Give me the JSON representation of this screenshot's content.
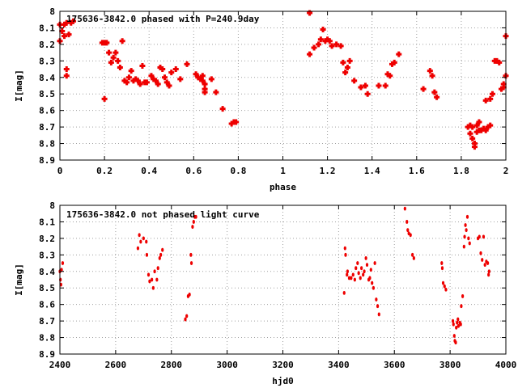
{
  "chart_data": [
    {
      "type": "scatter",
      "title": "175636-3842.0 phased with P=240.9day",
      "xlabel": "phase",
      "ylabel": "I[mag]",
      "xlim": [
        0,
        2
      ],
      "ylim": [
        8.9,
        8
      ],
      "y_inverted": true,
      "grid": true,
      "marker": "cross",
      "color": "#ee0000",
      "xticks": [
        "0",
        "0.2",
        "0.4",
        "0.6",
        "0.8",
        "1",
        "1.2",
        "1.4",
        "1.6",
        "1.8",
        "2"
      ],
      "yticks": [
        "8",
        "8.1",
        "8.2",
        "8.3",
        "8.4",
        "8.5",
        "8.6",
        "8.7",
        "8.8",
        "8.9"
      ],
      "series": [
        {
          "points": [
            [
              0.0,
              8.18
            ],
            [
              0.0,
              8.08
            ],
            [
              0.01,
              8.12
            ],
            [
              0.02,
              8.08
            ],
            [
              0.02,
              8.15
            ],
            [
              0.03,
              8.07
            ],
            [
              0.03,
              8.35
            ],
            [
              0.03,
              8.39
            ],
            [
              0.04,
              8.14
            ],
            [
              0.05,
              8.07
            ],
            [
              0.06,
              8.06
            ],
            [
              0.19,
              8.19
            ],
            [
              0.2,
              8.19
            ],
            [
              0.2,
              8.53
            ],
            [
              0.21,
              8.19
            ],
            [
              0.22,
              8.25
            ],
            [
              0.23,
              8.31
            ],
            [
              0.24,
              8.28
            ],
            [
              0.25,
              8.25
            ],
            [
              0.26,
              8.3
            ],
            [
              0.27,
              8.34
            ],
            [
              0.28,
              8.18
            ],
            [
              0.29,
              8.42
            ],
            [
              0.3,
              8.43
            ],
            [
              0.31,
              8.4
            ],
            [
              0.32,
              8.36
            ],
            [
              0.33,
              8.42
            ],
            [
              0.34,
              8.41
            ],
            [
              0.35,
              8.42
            ],
            [
              0.36,
              8.44
            ],
            [
              0.37,
              8.33
            ],
            [
              0.38,
              8.43
            ],
            [
              0.39,
              8.43
            ],
            [
              0.41,
              8.39
            ],
            [
              0.42,
              8.41
            ],
            [
              0.43,
              8.42
            ],
            [
              0.44,
              8.44
            ],
            [
              0.45,
              8.34
            ],
            [
              0.46,
              8.35
            ],
            [
              0.47,
              8.4
            ],
            [
              0.48,
              8.43
            ],
            [
              0.49,
              8.45
            ],
            [
              0.5,
              8.37
            ],
            [
              0.52,
              8.35
            ],
            [
              0.54,
              8.41
            ],
            [
              0.57,
              8.32
            ],
            [
              0.61,
              8.38
            ],
            [
              0.62,
              8.4
            ],
            [
              0.63,
              8.41
            ],
            [
              0.64,
              8.42
            ],
            [
              0.64,
              8.39
            ],
            [
              0.65,
              8.44
            ],
            [
              0.65,
              8.47
            ],
            [
              0.65,
              8.49
            ],
            [
              0.68,
              8.41
            ],
            [
              0.7,
              8.49
            ],
            [
              0.73,
              8.59
            ],
            [
              0.77,
              8.68
            ],
            [
              0.78,
              8.67
            ],
            [
              0.79,
              8.67
            ],
            [
              1.12,
              8.01
            ],
            [
              1.12,
              8.26
            ],
            [
              1.14,
              8.22
            ],
            [
              1.16,
              8.2
            ],
            [
              1.17,
              8.17
            ],
            [
              1.18,
              8.11
            ],
            [
              1.19,
              8.18
            ],
            [
              1.2,
              8.17
            ],
            [
              1.21,
              8.18
            ],
            [
              1.22,
              8.21
            ],
            [
              1.24,
              8.2
            ],
            [
              1.26,
              8.21
            ],
            [
              1.27,
              8.31
            ],
            [
              1.28,
              8.37
            ],
            [
              1.29,
              8.34
            ],
            [
              1.3,
              8.3
            ],
            [
              1.32,
              8.42
            ],
            [
              1.35,
              8.46
            ],
            [
              1.37,
              8.45
            ],
            [
              1.38,
              8.5
            ],
            [
              1.43,
              8.45
            ],
            [
              1.46,
              8.45
            ],
            [
              1.47,
              8.38
            ],
            [
              1.48,
              8.39
            ],
            [
              1.49,
              8.32
            ],
            [
              1.5,
              8.31
            ],
            [
              1.52,
              8.26
            ],
            [
              1.63,
              8.47
            ],
            [
              1.66,
              8.36
            ],
            [
              1.67,
              8.39
            ],
            [
              1.68,
              8.49
            ],
            [
              1.69,
              8.52
            ],
            [
              1.83,
              8.7
            ],
            [
              1.84,
              8.74
            ],
            [
              1.84,
              8.69
            ],
            [
              1.85,
              8.7
            ],
            [
              1.85,
              8.77
            ],
            [
              1.86,
              8.8
            ],
            [
              1.86,
              8.82
            ],
            [
              1.87,
              8.69
            ],
            [
              1.87,
              8.73
            ],
            [
              1.88,
              8.72
            ],
            [
              1.88,
              8.67
            ],
            [
              1.89,
              8.72
            ],
            [
              1.9,
              8.71
            ],
            [
              1.91,
              8.54
            ],
            [
              1.91,
              8.72
            ],
            [
              1.92,
              8.7
            ],
            [
              1.93,
              8.69
            ],
            [
              1.93,
              8.53
            ],
            [
              1.94,
              8.5
            ],
            [
              1.95,
              8.3
            ],
            [
              1.96,
              8.3
            ],
            [
              1.97,
              8.31
            ],
            [
              1.98,
              8.47
            ],
            [
              1.99,
              8.46
            ],
            [
              1.99,
              8.44
            ],
            [
              2.0,
              8.15
            ],
            [
              2.0,
              8.39
            ]
          ]
        }
      ]
    },
    {
      "type": "scatter",
      "title": "175636-3842.0 not phased light curve",
      "xlabel": "hjd0",
      "ylabel": "I[mag]",
      "xlim": [
        2400,
        4000
      ],
      "ylim": [
        8.9,
        8
      ],
      "y_inverted": true,
      "grid": true,
      "marker": "dot",
      "color": "#ee0000",
      "xticks": [
        "2400",
        "2600",
        "2800",
        "3000",
        "3200",
        "3400",
        "3600",
        "3800",
        "4000"
      ],
      "yticks": [
        "8",
        "8.1",
        "8.2",
        "8.3",
        "8.4",
        "8.5",
        "8.6",
        "8.7",
        "8.8",
        "8.9"
      ],
      "series": [
        {
          "points": [
            [
              2400,
              8.4
            ],
            [
              2402,
              8.45
            ],
            [
              2404,
              8.48
            ],
            [
              2406,
              8.39
            ],
            [
              2410,
              8.35
            ],
            [
              2680,
              8.26
            ],
            [
              2685,
              8.18
            ],
            [
              2690,
              8.22
            ],
            [
              2700,
              8.2
            ],
            [
              2710,
              8.22
            ],
            [
              2712,
              8.3
            ],
            [
              2718,
              8.42
            ],
            [
              2722,
              8.46
            ],
            [
              2730,
              8.45
            ],
            [
              2735,
              8.5
            ],
            [
              2740,
              8.4
            ],
            [
              2748,
              8.45
            ],
            [
              2752,
              8.38
            ],
            [
              2758,
              8.32
            ],
            [
              2762,
              8.3
            ],
            [
              2768,
              8.27
            ],
            [
              2850,
              8.69
            ],
            [
              2855,
              8.67
            ],
            [
              2860,
              8.55
            ],
            [
              2865,
              8.54
            ],
            [
              2870,
              8.3
            ],
            [
              2872,
              8.35
            ],
            [
              2876,
              8.13
            ],
            [
              2880,
              8.1
            ],
            [
              2884,
              8.07
            ],
            [
              2888,
              8.07
            ],
            [
              3420,
              8.53
            ],
            [
              3423,
              8.26
            ],
            [
              3425,
              8.3
            ],
            [
              3430,
              8.42
            ],
            [
              3432,
              8.4
            ],
            [
              3438,
              8.44
            ],
            [
              3445,
              8.44
            ],
            [
              3452,
              8.42
            ],
            [
              3458,
              8.45
            ],
            [
              3462,
              8.38
            ],
            [
              3468,
              8.35
            ],
            [
              3472,
              8.41
            ],
            [
              3478,
              8.44
            ],
            [
              3482,
              8.38
            ],
            [
              3488,
              8.42
            ],
            [
              3492,
              8.4
            ],
            [
              3498,
              8.32
            ],
            [
              3502,
              8.36
            ],
            [
              3508,
              8.45
            ],
            [
              3512,
              8.44
            ],
            [
              3516,
              8.39
            ],
            [
              3520,
              8.47
            ],
            [
              3525,
              8.5
            ],
            [
              3530,
              8.35
            ],
            [
              3535,
              8.57
            ],
            [
              3540,
              8.61
            ],
            [
              3545,
              8.66
            ],
            [
              3638,
              8.02
            ],
            [
              3645,
              8.1
            ],
            [
              3648,
              8.15
            ],
            [
              3652,
              8.17
            ],
            [
              3658,
              8.18
            ],
            [
              3665,
              8.3
            ],
            [
              3670,
              8.32
            ],
            [
              3770,
              8.35
            ],
            [
              3772,
              8.38
            ],
            [
              3775,
              8.47
            ],
            [
              3780,
              8.49
            ],
            [
              3785,
              8.51
            ],
            [
              3810,
              8.7
            ],
            [
              3812,
              8.72
            ],
            [
              3815,
              8.79
            ],
            [
              3817,
              8.82
            ],
            [
              3820,
              8.83
            ],
            [
              3822,
              8.74
            ],
            [
              3825,
              8.71
            ],
            [
              3828,
              8.69
            ],
            [
              3830,
              8.73
            ],
            [
              3835,
              8.71
            ],
            [
              3838,
              8.72
            ],
            [
              3840,
              8.61
            ],
            [
              3845,
              8.55
            ],
            [
              3850,
              8.25
            ],
            [
              3852,
              8.19
            ],
            [
              3855,
              8.12
            ],
            [
              3858,
              8.15
            ],
            [
              3862,
              8.07
            ],
            [
              3866,
              8.2
            ],
            [
              3870,
              8.23
            ],
            [
              3900,
              8.2
            ],
            [
              3905,
              8.19
            ],
            [
              3910,
              8.29
            ],
            [
              3915,
              8.33
            ],
            [
              3920,
              8.19
            ],
            [
              3925,
              8.36
            ],
            [
              3930,
              8.34
            ],
            [
              3935,
              8.35
            ],
            [
              3938,
              8.42
            ],
            [
              3940,
              8.4
            ]
          ]
        }
      ]
    }
  ]
}
